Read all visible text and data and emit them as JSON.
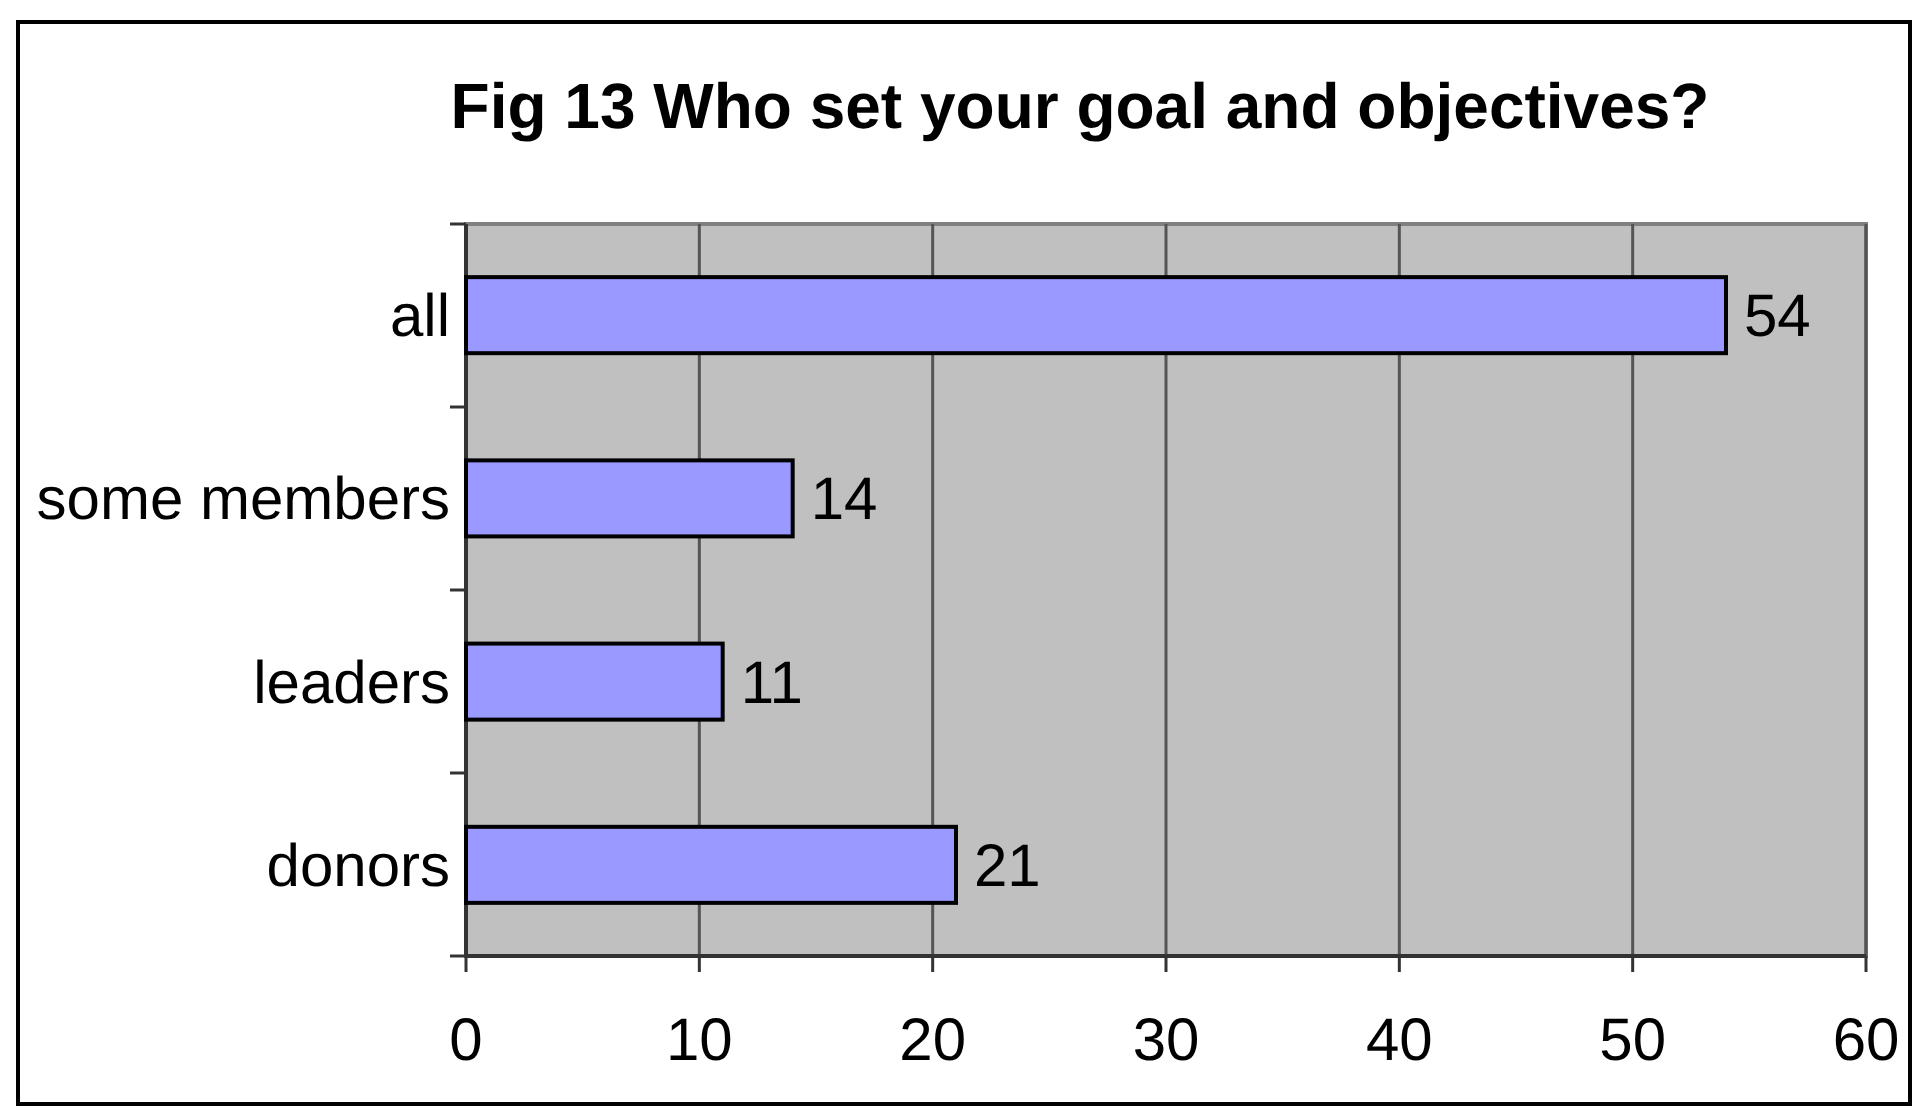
{
  "chart_data": {
    "type": "bar",
    "orientation": "horizontal",
    "title": "Fig 13 Who set your goal and objectives?",
    "categories": [
      "all",
      "some members",
      "leaders",
      "donors"
    ],
    "values": [
      54,
      14,
      11,
      21
    ],
    "color": "#9999ff",
    "xlim": [
      0,
      60
    ],
    "xticks": [
      0,
      10,
      20,
      30,
      40,
      50,
      60
    ],
    "grid": "x",
    "data_labels": true
  }
}
